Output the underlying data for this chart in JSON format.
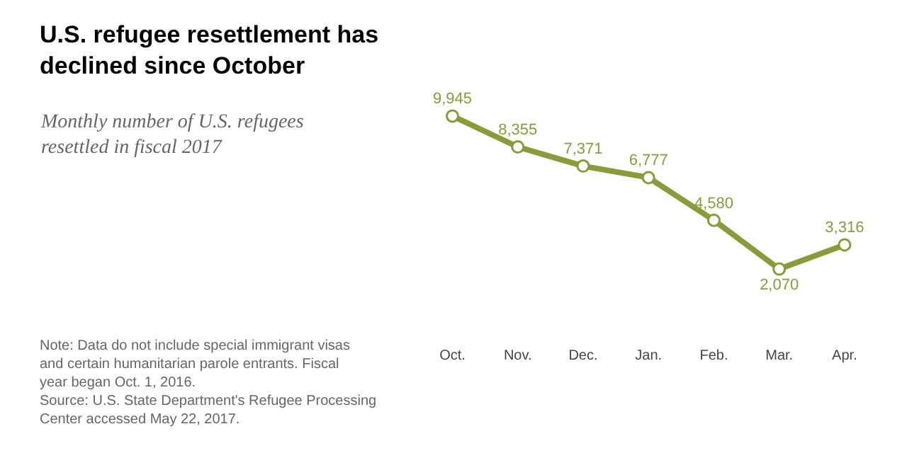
{
  "chart_data": {
    "type": "line",
    "title": "U.S. refugee resettlement has declined since October",
    "subtitle": "Monthly number of U.S. refugees resettled in fiscal 2017",
    "categories": [
      "Oct.",
      "Nov.",
      "Dec.",
      "Jan.",
      "Feb.",
      "Mar.",
      "Apr."
    ],
    "values": [
      9945,
      8355,
      7371,
      6777,
      4580,
      2070,
      3316
    ],
    "value_labels": [
      "9,945",
      "8,355",
      "7,371",
      "6,777",
      "4,580",
      "2,070",
      "3,316"
    ],
    "color": "#8c9a3c",
    "marker": "circle",
    "line_style": "solid",
    "legend": false,
    "annotations": [
      "Note: Data do not include special immigrant visas and certain humanitarian parole entrants. Fiscal year began Oct. 1, 2016.\nSource: U.S. State Department's Refugee Processing Center accessed May 22, 2017."
    ]
  }
}
